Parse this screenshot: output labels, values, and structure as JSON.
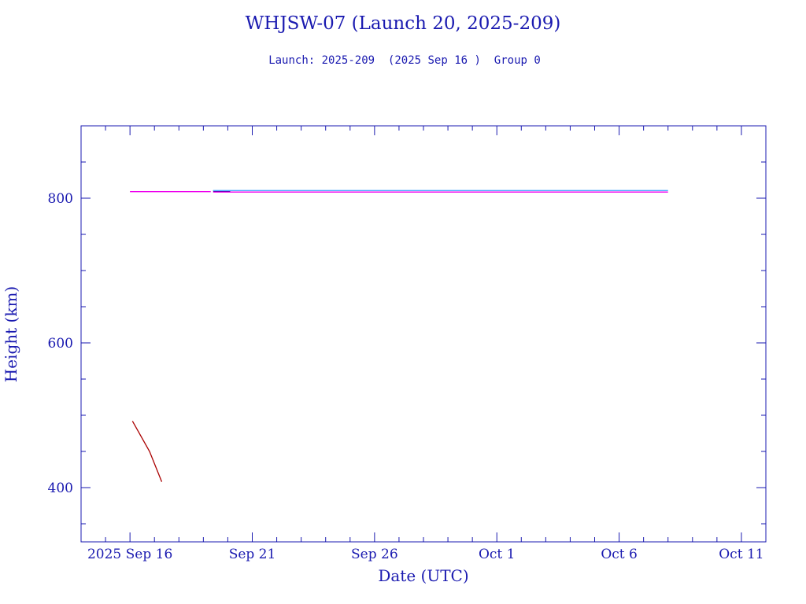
{
  "chart_data": {
    "type": "line",
    "title": "WHJSW-07 (Launch 20, 2025-209)",
    "subtitle": "Launch: 2025-209  (2025 Sep 16 )  Group 0",
    "xlabel": "Date (UTC)",
    "ylabel": "Height (km)",
    "x_tick_labels": [
      "2025 Sep 16",
      "Sep 21",
      "Sep 26",
      "Oct  1",
      "Oct  6",
      "Oct 11"
    ],
    "x_tick_values": [
      "2025-09-16",
      "2025-09-21",
      "2025-09-26",
      "2025-10-01",
      "2025-10-06",
      "2025-10-11"
    ],
    "xlim": [
      "2025-09-14",
      "2025-10-12"
    ],
    "y_ticks": [
      400,
      600,
      800
    ],
    "ylim": [
      325,
      900
    ],
    "grid": false,
    "series": [
      {
        "color": "#ee00ee",
        "x": [
          "2025-09-16",
          "2025-09-19.3"
        ],
        "y": [
          809,
          809
        ]
      },
      {
        "color": "#000080",
        "x": [
          "2025-09-19.4",
          "2025-09-20.1"
        ],
        "y": [
          810,
          810
        ]
      },
      {
        "color": "#44aaff",
        "x": [
          "2025-09-19.4",
          "2025-10-08"
        ],
        "y": [
          810.5,
          810.5
        ]
      },
      {
        "color": "#ee00ee",
        "x": [
          "2025-09-19.4",
          "2025-10-08"
        ],
        "y": [
          808.5,
          808.5
        ]
      },
      {
        "color": "#aa0000",
        "x": [
          "2025-09-16.1",
          "2025-09-16.8",
          "2025-09-17.3"
        ],
        "y": [
          492,
          450,
          408
        ]
      }
    ]
  }
}
